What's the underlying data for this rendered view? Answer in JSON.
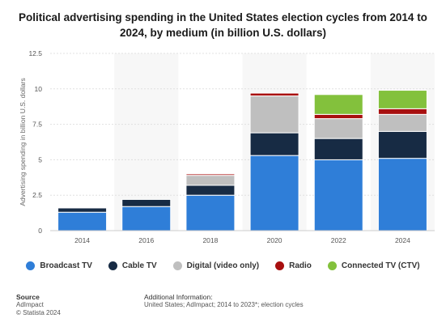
{
  "chart_data": {
    "type": "bar",
    "stacked": true,
    "title": "Political advertising spending in the United States election cycles from 2014 to 2024, by medium (in billion U.S. dollars)",
    "ylabel": "Advertising spending in billion U.S. dollars",
    "xlabel": "",
    "ylim": [
      0,
      12.5
    ],
    "yticks": [
      "0",
      "2.5",
      "5",
      "7.5",
      "10",
      "12.5"
    ],
    "ytick_values": [
      0,
      2.5,
      5,
      7.5,
      10,
      12.5
    ],
    "grid": true,
    "legend_position": "bottom",
    "categories": [
      "2014",
      "2016",
      "2018",
      "2020",
      "2022",
      "2024"
    ],
    "series": [
      {
        "name": "Broadcast TV",
        "color": "#2f7ed8",
        "values": [
          1.3,
          1.7,
          2.5,
          5.3,
          5.0,
          5.1
        ]
      },
      {
        "name": "Cable TV",
        "color": "#172b44",
        "values": [
          0.3,
          0.5,
          0.7,
          1.6,
          1.5,
          1.9
        ]
      },
      {
        "name": "Digital (video only)",
        "color": "#bfbfbf",
        "values": [
          0.0,
          0.0,
          0.7,
          2.6,
          1.4,
          1.2
        ]
      },
      {
        "name": "Radio",
        "color": "#a80f0f",
        "values": [
          0.0,
          0.0,
          0.1,
          0.2,
          0.3,
          0.4
        ]
      },
      {
        "name": "Connected TV (CTV)",
        "color": "#83c13c",
        "values": [
          0.0,
          0.0,
          0.0,
          0.0,
          1.4,
          1.3
        ]
      }
    ]
  },
  "legend": [
    {
      "label": "Broadcast TV",
      "color": "#2f7ed8"
    },
    {
      "label": "Cable TV",
      "color": "#172b44"
    },
    {
      "label": "Digital (video only)",
      "color": "#bfbfbf"
    },
    {
      "label": "Radio",
      "color": "#a80f0f"
    },
    {
      "label": "Connected TV (CTV)",
      "color": "#83c13c"
    }
  ],
  "footer": {
    "source_heading": "Source",
    "source_lines": [
      "AdImpact",
      "© Statista 2024"
    ],
    "info_heading": "Additional Information:",
    "info_text": "United States; AdImpact; 2014 to 2023*; election cycles"
  }
}
